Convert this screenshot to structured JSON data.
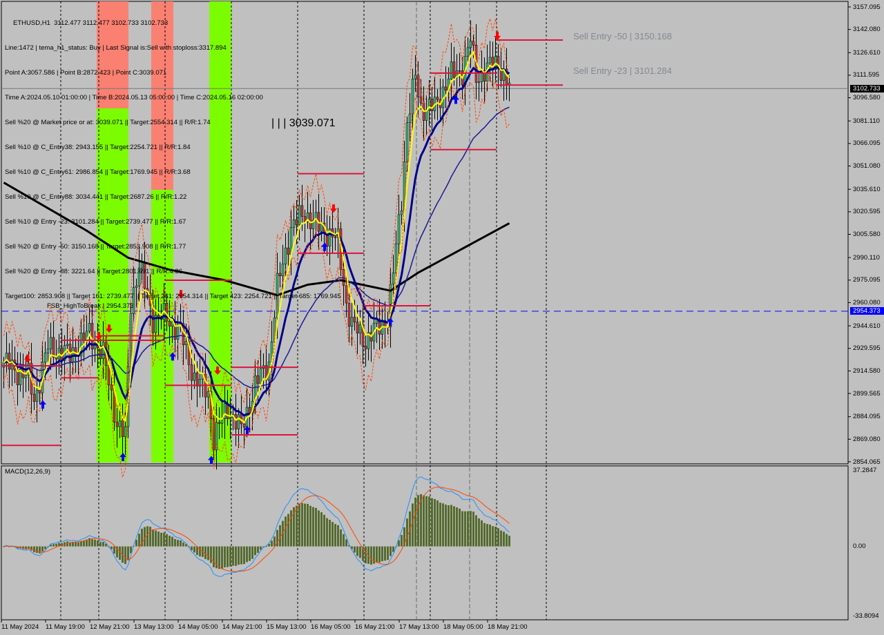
{
  "header": {
    "symbol_line": "ETHUSD,H1  3112.477 3112.477 3102.733 3102.733",
    "info_lines": [
      "Line:1472 | tema_h1_status: Buy | Last Signal is:Sell with stoploss:3317.894",
      "Point A:3057.586 | Point B:2872.423 | Point C:3039.071",
      "Time A:2024.05.10 01:00:00 | Time B:2024.05.13 05:00:00 | Time C:2024.05.16 02:00:00",
      "Sell %20 @ Market price or at: 3039.071 || Target:2554.314 || R/R:1.74",
      "Sell %10 @ C_Entry38: 2943.155 || Target:2254.721 || R/R:1.84",
      "Sell %10 @ C_Entry61: 2986.854 || Target:1769.945 || R/R:3.68",
      "Sell %10 @ C_Entry88: 3034.441 || Target:2687.26 || R/R:1.22",
      "Sell %10 @ Entry -23: 3101.284 || Target:2739.477 || R/R:1.67",
      "Sell %20 @ Entry -50: 3150.168 || Target:2853.908 || R/R:1.77",
      "Sell %20 @ Entry -88: 3221.64 || Target:2801.691 || R/R:4.36",
      "Target100: 2853.908 || Target 161: 2739.477 || Target 261: 2554.314 || Target 423: 2254.721 || Target 685: 1769.945"
    ]
  },
  "annotations": {
    "point_c_label": "| | | 3039.071",
    "ghost_entry_50": "Sell Entry -50 | 3150.168",
    "ghost_entry_23": "Sell Entry -23 | 3101.284",
    "fsb_label": "FSB_HighToBreak | 2954.373",
    "fsb_level": 2954.373
  },
  "price_axis": {
    "ticks": [
      "3157.095",
      "3142.080",
      "3126.610",
      "3111.595",
      "3096.580",
      "3081.110",
      "3066.095",
      "3051.080",
      "3035.610",
      "3020.595",
      "3005.580",
      "2990.110",
      "2975.095",
      "2960.080",
      "2944.610",
      "2929.595",
      "2914.580",
      "2899.565",
      "2884.095",
      "2869.080",
      "2854.065"
    ],
    "range": [
      2854.065,
      3157.095
    ],
    "current_price": "3102.733",
    "fsb_tag": "2954.373"
  },
  "macd": {
    "label": "MACD(12,26,9)",
    "ticks": [
      "37.2847",
      "0.00",
      "-33.8094"
    ],
    "range": [
      -33.8094,
      37.2847
    ]
  },
  "time_axis": {
    "labels": [
      "11 May 2024",
      "11 May 19:00",
      "12 May 21:00",
      "13 May 13:00",
      "14 May 05:00",
      "14 May 21:00",
      "15 May 13:00",
      "16 May 05:00",
      "16 May 21:00",
      "17 May 13:00",
      "18 May 05:00",
      "18 May 21:00"
    ]
  },
  "series": {
    "close_waypoints": [
      [
        0,
        2920
      ],
      [
        9,
        2910
      ],
      [
        11,
        2895
      ],
      [
        16,
        2930
      ],
      [
        24,
        2925
      ],
      [
        31,
        2940
      ],
      [
        36,
        2925
      ],
      [
        41,
        2880
      ],
      [
        44,
        2870
      ],
      [
        46,
        2960
      ],
      [
        49,
        2985
      ],
      [
        54,
        2950
      ],
      [
        59,
        2950
      ],
      [
        64,
        2940
      ],
      [
        69,
        2910
      ],
      [
        74,
        2900
      ],
      [
        76,
        2870
      ],
      [
        81,
        2890
      ],
      [
        86,
        2875
      ],
      [
        91,
        2905
      ],
      [
        96,
        2920
      ],
      [
        99,
        2970
      ],
      [
        104,
        3010
      ],
      [
        109,
        3020
      ],
      [
        114,
        3010
      ],
      [
        119,
        3005
      ],
      [
        121,
        3000
      ],
      [
        124,
        2960
      ],
      [
        126,
        2945
      ],
      [
        131,
        2935
      ],
      [
        139,
        2950
      ],
      [
        141,
        2980
      ],
      [
        144,
        3030
      ],
      [
        146,
        3080
      ],
      [
        149,
        3110
      ],
      [
        151,
        3090
      ],
      [
        156,
        3090
      ],
      [
        161,
        3110
      ],
      [
        166,
        3115
      ],
      [
        169,
        3135
      ],
      [
        171,
        3110
      ],
      [
        174,
        3115
      ],
      [
        179,
        3120
      ],
      [
        183,
        3103
      ]
    ],
    "ma200_waypoints": [
      [
        0,
        3040
      ],
      [
        30,
        3008
      ],
      [
        45,
        2990
      ],
      [
        60,
        2982
      ],
      [
        80,
        2975
      ],
      [
        99,
        2965
      ],
      [
        110,
        2972
      ],
      [
        122,
        2975
      ],
      [
        140,
        2968
      ],
      [
        150,
        2980
      ],
      [
        165,
        2995
      ],
      [
        183,
        3013
      ]
    ],
    "levels": [
      2975.0,
      2865.0,
      3046.0,
      2993.0,
      2958.0,
      2917.0,
      3135.0,
      3105.0,
      3062.0,
      3113.0,
      2935.0,
      2910.0,
      2872.0,
      2938.0,
      2905.0,
      2918.0
    ]
  },
  "colors": {
    "background": "#c0c0c0",
    "bull": "#3cb371",
    "bear": "#c83a3a",
    "ema_fast": "#ffff00",
    "ema_mid": "#00008b",
    "ema_slow": "#1a1a9a",
    "ma200": "#000000",
    "level": "#dc143c",
    "fsb": "#0000ff",
    "green_zone": "#7cfc00",
    "red_zone": "#fa8072",
    "macd_hist": "#556b2f",
    "macd_line": "#1e90ff",
    "signal_line": "#ff4500"
  }
}
